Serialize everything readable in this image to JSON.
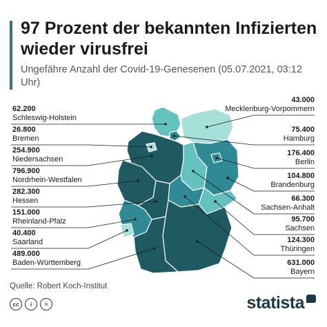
{
  "header": {
    "title": "97 Prozent der bekannten Infizierten wieder virusfrei",
    "subtitle": "Ungefähre Anzahl der Covid-19-Genesenen (05.07.2021, 03:12 Uhr)"
  },
  "colors": {
    "accent": "#3e6f7a",
    "dark": "#1f5a62",
    "medium": "#2f8a96",
    "light": "#63c2bd",
    "pale": "#a7dfd9",
    "brand": "#1a3a4a"
  },
  "states": [
    {
      "name": "Mecklenburg-Vorpommern",
      "value": "43.000",
      "shade": "pale"
    },
    {
      "name": "Hamburg",
      "value": "75.400",
      "shade": "medium"
    },
    {
      "name": "Berlin",
      "value": "176.400",
      "shade": "medium"
    },
    {
      "name": "Brandenburg",
      "value": "104.800",
      "shade": "medium"
    },
    {
      "name": "Sachsen-Anhalt",
      "value": "66.300",
      "shade": "light"
    },
    {
      "name": "Sachsen",
      "value": "95.700",
      "shade": "light"
    },
    {
      "name": "Thüringen",
      "value": "124.300",
      "shade": "medium"
    },
    {
      "name": "Bayern",
      "value": "631.000",
      "shade": "dark"
    },
    {
      "name": "Schleswig-Holstein",
      "value": "62.200",
      "shade": "light"
    },
    {
      "name": "Bremen",
      "value": "26.800",
      "shade": "pale"
    },
    {
      "name": "Niedersachsen",
      "value": "254.900",
      "shade": "dark"
    },
    {
      "name": "Nordrhein-Westfalen",
      "value": "796.900",
      "shade": "dark"
    },
    {
      "name": "Hessen",
      "value": "282.300",
      "shade": "dark"
    },
    {
      "name": "Rheinland-Pfalz",
      "value": "151.000",
      "shade": "medium"
    },
    {
      "name": "Saarland",
      "value": "40.400",
      "shade": "pale"
    },
    {
      "name": "Baden-Württemberg",
      "value": "489.000",
      "shade": "dark"
    }
  ],
  "source": "Quelle: Robert Koch-Institut",
  "license_icons": [
    "cc-icon",
    "by-icon",
    "nd-icon"
  ],
  "brand": "statista"
}
